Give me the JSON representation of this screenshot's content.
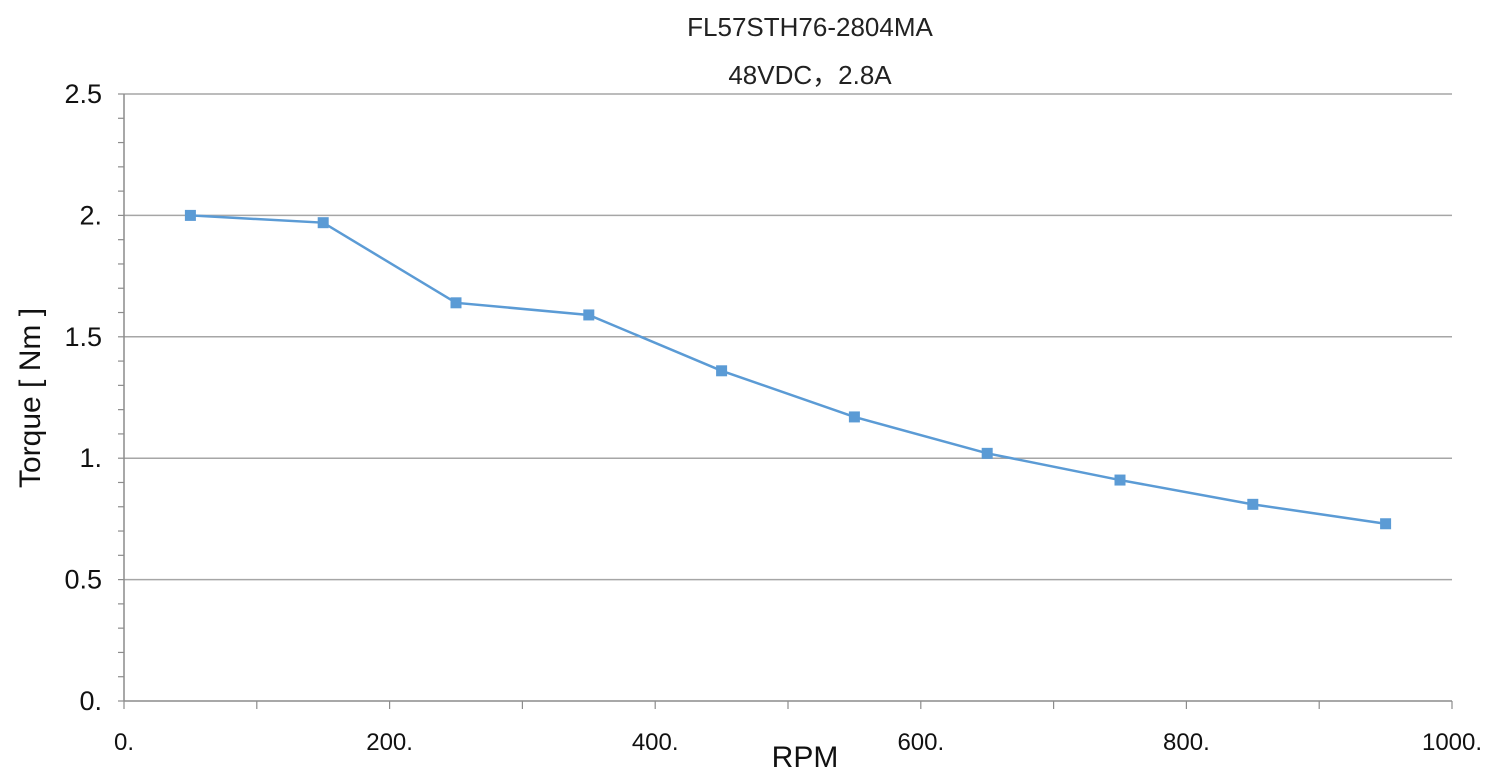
{
  "chart_data": {
    "type": "line",
    "title": "FL57STH76-2804MA",
    "subtitle": "48VDC，2.8A",
    "xlabel": "RPM",
    "ylabel": "Torque [ Nm ]",
    "xlim": [
      0,
      1000
    ],
    "ylim": [
      0,
      2.5
    ],
    "x_ticks": [
      {
        "value": 0,
        "label": "0."
      },
      {
        "value": 200,
        "label": "200."
      },
      {
        "value": 400,
        "label": "400."
      },
      {
        "value": 600,
        "label": "600."
      },
      {
        "value": 800,
        "label": "800."
      },
      {
        "value": 1000,
        "label": "1000."
      }
    ],
    "y_ticks": [
      {
        "value": 0,
        "label": "0."
      },
      {
        "value": 0.5,
        "label": "0.5"
      },
      {
        "value": 1,
        "label": "1."
      },
      {
        "value": 1.5,
        "label": "1.5"
      },
      {
        "value": 2,
        "label": "2."
      },
      {
        "value": 2.5,
        "label": "2.5"
      }
    ],
    "grid": "horizontal",
    "legend": "none",
    "series": [
      {
        "color": "#5b9bd5",
        "marker": "square",
        "x": [
          50,
          150,
          250,
          350,
          450,
          550,
          650,
          750,
          850,
          950
        ],
        "y": [
          2.0,
          1.97,
          1.64,
          1.59,
          1.36,
          1.17,
          1.02,
          0.91,
          0.81,
          0.73
        ]
      }
    ]
  }
}
